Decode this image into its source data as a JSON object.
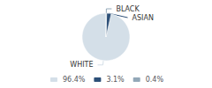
{
  "chart_data": {
    "type": "pie",
    "categories": [
      "WHITE",
      "ASIAN",
      "BLACK"
    ],
    "values": [
      96.4,
      3.1,
      0.4
    ],
    "value_labels": [
      "96.4%",
      "3.1%",
      "0.4%"
    ],
    "colors": [
      "#d4dfe8",
      "#2d5078",
      "#93a8b8"
    ],
    "legend": "bottom"
  }
}
